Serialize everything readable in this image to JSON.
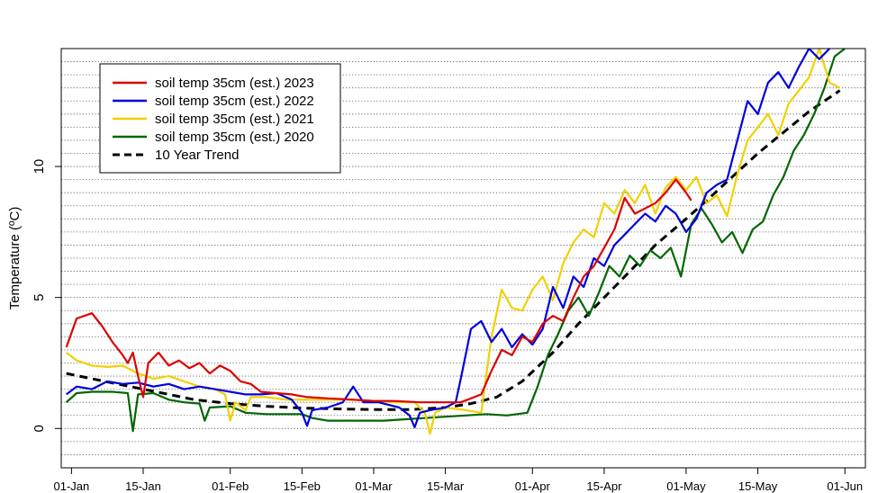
{
  "chart_data": {
    "type": "line",
    "title": "",
    "xlabel": "",
    "ylabel": "Temperature (ºC)",
    "x_ticks": [
      {
        "date": "01-Jan",
        "label": "01-Jan"
      },
      {
        "date": "15-Jan",
        "label": "15-Jan"
      },
      {
        "date": "01-Feb",
        "label": "01-Feb"
      },
      {
        "date": "15-Feb",
        "label": "15-Feb"
      },
      {
        "date": "01-Mar",
        "label": "01-Mar"
      },
      {
        "date": "15-Mar",
        "label": "15-Mar"
      },
      {
        "date": "01-Apr",
        "label": "01-Apr"
      },
      {
        "date": "15-Apr",
        "label": "15-Apr"
      },
      {
        "date": "01-May",
        "label": "01-May"
      },
      {
        "date": "15-May",
        "label": "15-May"
      },
      {
        "date": "01-Jun",
        "label": "01-Jun"
      }
    ],
    "y_ticks": [
      0,
      5,
      10
    ],
    "xlim": [
      "30-Dec",
      "05-Jun"
    ],
    "ylim": [
      -1.5,
      14.5
    ],
    "grid": {
      "horizontal": true,
      "style": "dotted",
      "step": 0.5
    },
    "legend_position": "top-left",
    "series": [
      {
        "name": "soil temp 35cm (est.) 2023",
        "color": "#dd0000",
        "dash": "solid",
        "points": [
          [
            "31-Dec",
            3.1
          ],
          [
            "02-Jan",
            4.2
          ],
          [
            "05-Jan",
            4.4
          ],
          [
            "07-Jan",
            3.9
          ],
          [
            "09-Jan",
            3.3
          ],
          [
            "11-Jan",
            2.8
          ],
          [
            "12-Jan",
            2.5
          ],
          [
            "13-Jan",
            2.9
          ],
          [
            "14-Jan",
            2.0
          ],
          [
            "15-Jan",
            1.2
          ],
          [
            "16-Jan",
            2.5
          ],
          [
            "18-Jan",
            2.9
          ],
          [
            "20-Jan",
            2.4
          ],
          [
            "22-Jan",
            2.6
          ],
          [
            "24-Jan",
            2.3
          ],
          [
            "26-Jan",
            2.5
          ],
          [
            "28-Jan",
            2.1
          ],
          [
            "30-Jan",
            2.4
          ],
          [
            "01-Feb",
            2.2
          ],
          [
            "03-Feb",
            1.8
          ],
          [
            "05-Feb",
            1.7
          ],
          [
            "07-Feb",
            1.4
          ],
          [
            "10-Feb",
            1.35
          ],
          [
            "13-Feb",
            1.3
          ],
          [
            "16-Feb",
            1.2
          ],
          [
            "20-Feb",
            1.15
          ],
          [
            "25-Feb",
            1.1
          ],
          [
            "01-Mar",
            1.05
          ],
          [
            "05-Mar",
            1.05
          ],
          [
            "10-Mar",
            1.0
          ],
          [
            "15-Mar",
            1.0
          ],
          [
            "18-Mar",
            1.0
          ],
          [
            "22-Mar",
            1.3
          ],
          [
            "24-Mar",
            2.2
          ],
          [
            "26-Mar",
            3.0
          ],
          [
            "28-Mar",
            2.8
          ],
          [
            "30-Mar",
            3.5
          ],
          [
            "01-Apr",
            3.3
          ],
          [
            "03-Apr",
            4.0
          ],
          [
            "05-Apr",
            4.3
          ],
          [
            "07-Apr",
            4.1
          ],
          [
            "09-Apr",
            5.0
          ],
          [
            "11-Apr",
            5.8
          ],
          [
            "13-Apr",
            6.2
          ],
          [
            "15-Apr",
            6.9
          ],
          [
            "17-Apr",
            7.6
          ],
          [
            "19-Apr",
            8.8
          ],
          [
            "21-Apr",
            8.2
          ],
          [
            "23-Apr",
            8.4
          ],
          [
            "25-Apr",
            8.6
          ],
          [
            "27-Apr",
            9.0
          ],
          [
            "29-Apr",
            9.5
          ],
          [
            "01-May",
            9.0
          ],
          [
            "02-May",
            8.7
          ]
        ]
      },
      {
        "name": "soil temp 35cm (est.) 2022",
        "color": "#0000dd",
        "dash": "solid",
        "points": [
          [
            "31-Dec",
            1.3
          ],
          [
            "02-Jan",
            1.6
          ],
          [
            "05-Jan",
            1.5
          ],
          [
            "08-Jan",
            1.8
          ],
          [
            "11-Jan",
            1.7
          ],
          [
            "14-Jan",
            1.75
          ],
          [
            "17-Jan",
            1.6
          ],
          [
            "20-Jan",
            1.7
          ],
          [
            "23-Jan",
            1.5
          ],
          [
            "26-Jan",
            1.6
          ],
          [
            "29-Jan",
            1.5
          ],
          [
            "01-Feb",
            1.4
          ],
          [
            "04-Feb",
            1.3
          ],
          [
            "07-Feb",
            1.3
          ],
          [
            "10-Feb",
            1.35
          ],
          [
            "13-Feb",
            1.1
          ],
          [
            "15-Feb",
            0.6
          ],
          [
            "16-Feb",
            0.1
          ],
          [
            "17-Feb",
            0.7
          ],
          [
            "20-Feb",
            0.8
          ],
          [
            "23-Feb",
            1.0
          ],
          [
            "25-Feb",
            1.6
          ],
          [
            "27-Feb",
            1.0
          ],
          [
            "02-Mar",
            1.0
          ],
          [
            "06-Mar",
            0.8
          ],
          [
            "08-Mar",
            0.5
          ],
          [
            "09-Mar",
            0.05
          ],
          [
            "10-Mar",
            0.6
          ],
          [
            "12-Mar",
            0.7
          ],
          [
            "15-Mar",
            0.8
          ],
          [
            "17-Mar",
            1.0
          ],
          [
            "18-Mar",
            1.9
          ],
          [
            "20-Mar",
            3.8
          ],
          [
            "22-Mar",
            4.1
          ],
          [
            "24-Mar",
            3.3
          ],
          [
            "26-Mar",
            3.8
          ],
          [
            "28-Mar",
            3.1
          ],
          [
            "30-Mar",
            3.6
          ],
          [
            "01-Apr",
            3.2
          ],
          [
            "03-Apr",
            3.8
          ],
          [
            "05-Apr",
            5.4
          ],
          [
            "07-Apr",
            4.6
          ],
          [
            "09-Apr",
            5.8
          ],
          [
            "11-Apr",
            5.4
          ],
          [
            "13-Apr",
            6.5
          ],
          [
            "15-Apr",
            6.2
          ],
          [
            "17-Apr",
            7.0
          ],
          [
            "19-Apr",
            7.4
          ],
          [
            "21-Apr",
            7.8
          ],
          [
            "23-Apr",
            8.2
          ],
          [
            "25-Apr",
            7.9
          ],
          [
            "27-Apr",
            8.5
          ],
          [
            "29-Apr",
            8.2
          ],
          [
            "01-May",
            7.5
          ],
          [
            "03-May",
            8.0
          ],
          [
            "05-May",
            9.0
          ],
          [
            "07-May",
            9.3
          ],
          [
            "09-May",
            9.5
          ],
          [
            "11-May",
            11.0
          ],
          [
            "13-May",
            12.5
          ],
          [
            "15-May",
            12.0
          ],
          [
            "17-May",
            13.2
          ],
          [
            "19-May",
            13.6
          ],
          [
            "21-May",
            13.0
          ],
          [
            "23-May",
            13.8
          ],
          [
            "25-May",
            14.5
          ],
          [
            "27-May",
            14.1
          ],
          [
            "29-May",
            14.5
          ]
        ]
      },
      {
        "name": "soil temp 35cm (est.) 2021",
        "color": "#f2d000",
        "dash": "solid",
        "points": [
          [
            "31-Dec",
            2.9
          ],
          [
            "02-Jan",
            2.6
          ],
          [
            "05-Jan",
            2.4
          ],
          [
            "08-Jan",
            2.35
          ],
          [
            "11-Jan",
            2.4
          ],
          [
            "14-Jan",
            2.1
          ],
          [
            "17-Jan",
            1.9
          ],
          [
            "20-Jan",
            2.0
          ],
          [
            "23-Jan",
            1.8
          ],
          [
            "26-Jan",
            1.6
          ],
          [
            "29-Jan",
            1.5
          ],
          [
            "31-Jan",
            1.3
          ],
          [
            "01-Feb",
            0.3
          ],
          [
            "02-Feb",
            1.0
          ],
          [
            "04-Feb",
            0.7
          ],
          [
            "05-Feb",
            1.2
          ],
          [
            "08-Feb",
            1.2
          ],
          [
            "12-Feb",
            1.1
          ],
          [
            "16-Feb",
            1.1
          ],
          [
            "20-Feb",
            1.1
          ],
          [
            "25-Feb",
            1.1
          ],
          [
            "01-Mar",
            1.05
          ],
          [
            "05-Mar",
            1.0
          ],
          [
            "09-Mar",
            1.0
          ],
          [
            "11-Mar",
            0.6
          ],
          [
            "12-Mar",
            -0.2
          ],
          [
            "13-Mar",
            0.6
          ],
          [
            "15-Mar",
            0.8
          ],
          [
            "19-Mar",
            0.7
          ],
          [
            "22-Mar",
            0.6
          ],
          [
            "24-Mar",
            3.5
          ],
          [
            "26-Mar",
            5.3
          ],
          [
            "28-Mar",
            4.6
          ],
          [
            "30-Mar",
            4.5
          ],
          [
            "01-Apr",
            5.3
          ],
          [
            "03-Apr",
            5.8
          ],
          [
            "05-Apr",
            4.9
          ],
          [
            "07-Apr",
            6.3
          ],
          [
            "09-Apr",
            7.1
          ],
          [
            "11-Apr",
            7.6
          ],
          [
            "13-Apr",
            7.3
          ],
          [
            "15-Apr",
            8.6
          ],
          [
            "17-Apr",
            8.2
          ],
          [
            "19-Apr",
            9.1
          ],
          [
            "21-Apr",
            8.6
          ],
          [
            "23-Apr",
            9.3
          ],
          [
            "25-Apr",
            8.2
          ],
          [
            "27-Apr",
            9.2
          ],
          [
            "29-Apr",
            9.6
          ],
          [
            "01-May",
            9.1
          ],
          [
            "03-May",
            9.6
          ],
          [
            "05-May",
            8.6
          ],
          [
            "07-May",
            8.9
          ],
          [
            "09-May",
            8.1
          ],
          [
            "11-May",
            9.7
          ],
          [
            "13-May",
            11.0
          ],
          [
            "15-May",
            11.5
          ],
          [
            "17-May",
            12.0
          ],
          [
            "19-May",
            11.2
          ],
          [
            "21-May",
            12.4
          ],
          [
            "23-May",
            12.9
          ],
          [
            "25-May",
            13.4
          ],
          [
            "27-May",
            14.5
          ],
          [
            "29-May",
            13.2
          ],
          [
            "31-May",
            13.0
          ]
        ]
      },
      {
        "name": "soil temp 35cm (est.) 2020",
        "color": "#006600",
        "dash": "solid",
        "points": [
          [
            "31-Dec",
            1.0
          ],
          [
            "02-Jan",
            1.35
          ],
          [
            "05-Jan",
            1.4
          ],
          [
            "09-Jan",
            1.4
          ],
          [
            "12-Jan",
            1.35
          ],
          [
            "13-Jan",
            -0.1
          ],
          [
            "14-Jan",
            1.3
          ],
          [
            "17-Jan",
            1.35
          ],
          [
            "20-Jan",
            1.1
          ],
          [
            "23-Jan",
            1.0
          ],
          [
            "26-Jan",
            0.95
          ],
          [
            "27-Jan",
            0.3
          ],
          [
            "28-Jan",
            0.8
          ],
          [
            "01-Feb",
            0.85
          ],
          [
            "04-Feb",
            0.6
          ],
          [
            "08-Feb",
            0.55
          ],
          [
            "12-Feb",
            0.55
          ],
          [
            "15-Feb",
            0.55
          ],
          [
            "17-Feb",
            0.4
          ],
          [
            "20-Feb",
            0.3
          ],
          [
            "24-Feb",
            0.3
          ],
          [
            "28-Feb",
            0.3
          ],
          [
            "03-Mar",
            0.3
          ],
          [
            "07-Mar",
            0.35
          ],
          [
            "11-Mar",
            0.4
          ],
          [
            "15-Mar",
            0.45
          ],
          [
            "19-Mar",
            0.5
          ],
          [
            "23-Mar",
            0.55
          ],
          [
            "27-Mar",
            0.5
          ],
          [
            "31-Mar",
            0.6
          ],
          [
            "02-Apr",
            1.6
          ],
          [
            "04-Apr",
            2.8
          ],
          [
            "06-Apr",
            3.6
          ],
          [
            "08-Apr",
            4.5
          ],
          [
            "10-Apr",
            5.0
          ],
          [
            "12-Apr",
            4.3
          ],
          [
            "14-Apr",
            5.2
          ],
          [
            "16-Apr",
            6.2
          ],
          [
            "18-Apr",
            5.8
          ],
          [
            "20-Apr",
            6.6
          ],
          [
            "22-Apr",
            6.2
          ],
          [
            "24-Apr",
            6.8
          ],
          [
            "26-Apr",
            6.5
          ],
          [
            "28-Apr",
            6.9
          ],
          [
            "30-Apr",
            5.8
          ],
          [
            "02-May",
            7.8
          ],
          [
            "04-May",
            8.4
          ],
          [
            "06-May",
            7.8
          ],
          [
            "08-May",
            7.1
          ],
          [
            "10-May",
            7.5
          ],
          [
            "12-May",
            6.7
          ],
          [
            "14-May",
            7.6
          ],
          [
            "16-May",
            7.9
          ],
          [
            "18-May",
            8.9
          ],
          [
            "20-May",
            9.6
          ],
          [
            "22-May",
            10.6
          ],
          [
            "24-May",
            11.2
          ],
          [
            "26-May",
            12.0
          ],
          [
            "28-May",
            13.0
          ],
          [
            "30-May",
            14.2
          ],
          [
            "01-Jun",
            14.5
          ]
        ]
      },
      {
        "name": "10 Year Trend",
        "color": "#000000",
        "dash": "dashed",
        "points": [
          [
            "31-Dec",
            2.1
          ],
          [
            "05-Jan",
            1.9
          ],
          [
            "10-Jan",
            1.7
          ],
          [
            "15-Jan",
            1.5
          ],
          [
            "20-Jan",
            1.3
          ],
          [
            "25-Jan",
            1.1
          ],
          [
            "01-Feb",
            0.95
          ],
          [
            "08-Feb",
            0.85
          ],
          [
            "15-Feb",
            0.78
          ],
          [
            "22-Feb",
            0.75
          ],
          [
            "01-Mar",
            0.72
          ],
          [
            "08-Mar",
            0.72
          ],
          [
            "15-Mar",
            0.8
          ],
          [
            "20-Mar",
            0.95
          ],
          [
            "25-Mar",
            1.2
          ],
          [
            "30-Mar",
            1.8
          ],
          [
            "05-Apr",
            2.9
          ],
          [
            "10-Apr",
            4.0
          ],
          [
            "15-Apr",
            5.0
          ],
          [
            "20-Apr",
            6.0
          ],
          [
            "25-Apr",
            7.0
          ],
          [
            "01-May",
            8.0
          ],
          [
            "05-May",
            8.7
          ],
          [
            "10-May",
            9.6
          ],
          [
            "15-May",
            10.5
          ],
          [
            "20-May",
            11.3
          ],
          [
            "25-May",
            12.1
          ],
          [
            "31-May",
            12.9
          ]
        ]
      }
    ]
  }
}
